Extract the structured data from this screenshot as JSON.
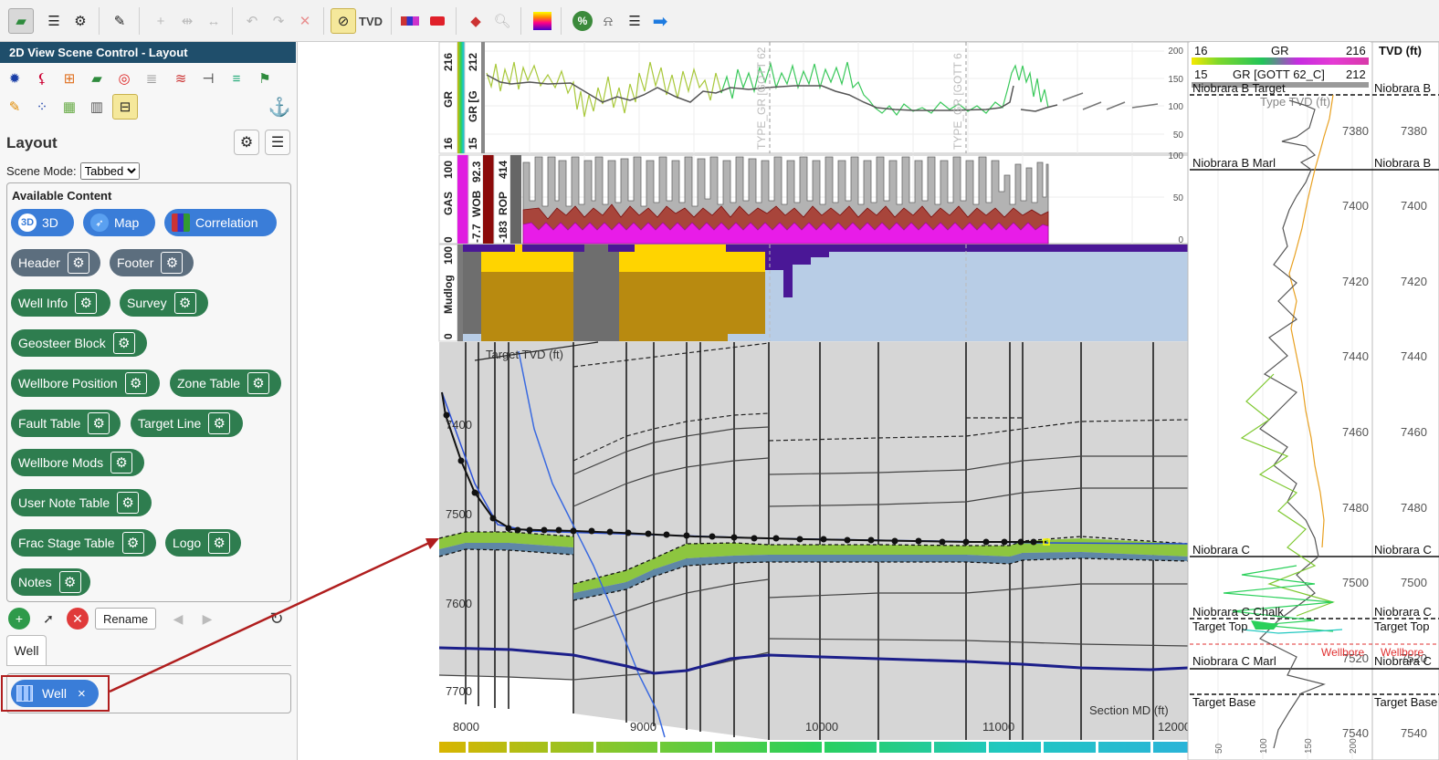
{
  "toolbar": {
    "tvd_label": "TVD",
    "icons": [
      "2d-view-icon",
      "list-icon",
      "gear-icon",
      "pencil-icon",
      "add-point-icon",
      "split-icon",
      "merge-icon",
      "undo-icon",
      "redo-icon",
      "delete-icon",
      "link-icon",
      "tvd-icon",
      "color-blocks-icon",
      "red-block-icon",
      "cube-icon",
      "search-icon",
      "gradient-icon",
      "percent-icon",
      "alarm-icon",
      "align-icon",
      "arrow-icon"
    ]
  },
  "panel": {
    "title": "2D View Scene Control - Layout",
    "layout_title": "Layout",
    "scene_mode_label": "Scene Mode:",
    "scene_mode_value": "Tabbed",
    "available_title": "Available Content",
    "chips": [
      {
        "label": "3D",
        "badge": "3D"
      },
      {
        "label": "Map"
      },
      {
        "label": "Correlation"
      },
      {
        "label": "Header"
      },
      {
        "label": "Footer"
      },
      {
        "label": "Well Info"
      },
      {
        "label": "Survey"
      },
      {
        "label": "Geosteer Block"
      },
      {
        "label": "Wellbore Position"
      },
      {
        "label": "Zone Table"
      },
      {
        "label": "Fault Table"
      },
      {
        "label": "Target Line"
      },
      {
        "label": "Wellbore Mods"
      },
      {
        "label": "User Note Table"
      },
      {
        "label": "Frac Stage Table"
      },
      {
        "label": "Logo"
      },
      {
        "label": "Notes"
      }
    ],
    "rename_label": "Rename",
    "tab_label": "Well",
    "well_chip_label": "Well",
    "well_chip_close": "×"
  },
  "tracks": {
    "gr_track_labels": [
      "216",
      "GR",
      "16"
    ],
    "gr2_track_labels": [
      "212",
      "GR [G",
      "15"
    ],
    "gr_axis": [
      "200",
      "150",
      "100",
      "50"
    ],
    "gas_labels": [
      "100",
      "GAS",
      "0"
    ],
    "wob_labels": [
      "92.3",
      "WOB",
      "-7.7"
    ],
    "rop_labels": [
      "414",
      "ROP",
      "-183"
    ],
    "gas_axis": [
      "100",
      "50",
      "0"
    ],
    "mudlog_labels": [
      "100",
      "Mudlog",
      "0"
    ],
    "type_log_labels": [
      "TYPE_GR [GOTT 62",
      "TYPE_GR [GOTT 6"
    ]
  },
  "section": {
    "target_tvd_label": "Target TVD (ft)",
    "tvd_ticks": [
      "7400",
      "7500",
      "7600",
      "7700"
    ],
    "md_ticks": [
      "8000",
      "9000",
      "10000",
      "11000",
      "12000"
    ],
    "md_label": "Section MD (ft)"
  },
  "typelog": {
    "gr_header": {
      "min": "16",
      "name": "GR",
      "max": "216"
    },
    "gr2_header": {
      "min": "15",
      "name": "GR [GOTT 62_C]",
      "max": "212"
    },
    "tvd_header": "TVD (ft)",
    "type_tvd_label": "Type TVD (ft)",
    "depth_ticks": [
      "7380",
      "7400",
      "7420",
      "7440",
      "7460",
      "7480",
      "7500",
      "7520",
      "7540"
    ],
    "gr_axis": [
      "50",
      "100",
      "150",
      "200"
    ],
    "tops": [
      {
        "left": "Niobrara B Target",
        "right": "Niobrara B",
        "style": "dash"
      },
      {
        "left": "Niobrara B Marl",
        "right": "Niobrara B",
        "style": "solid"
      },
      {
        "left": "Niobrara C",
        "right": "Niobrara C",
        "style": "solid"
      },
      {
        "left": "Niobrara C Chalk",
        "right": "Niobrara C",
        "style": "solid"
      },
      {
        "left": "Target Top",
        "right": "Target Top",
        "style": "dash"
      },
      {
        "left": "Niobrara C Marl",
        "right": "Niobrara C",
        "style": "solid"
      },
      {
        "left": "Target Base",
        "right": "Target Base",
        "style": "dash"
      }
    ],
    "wellbore_labels": [
      "Wellbore",
      "Wellbore"
    ]
  }
}
